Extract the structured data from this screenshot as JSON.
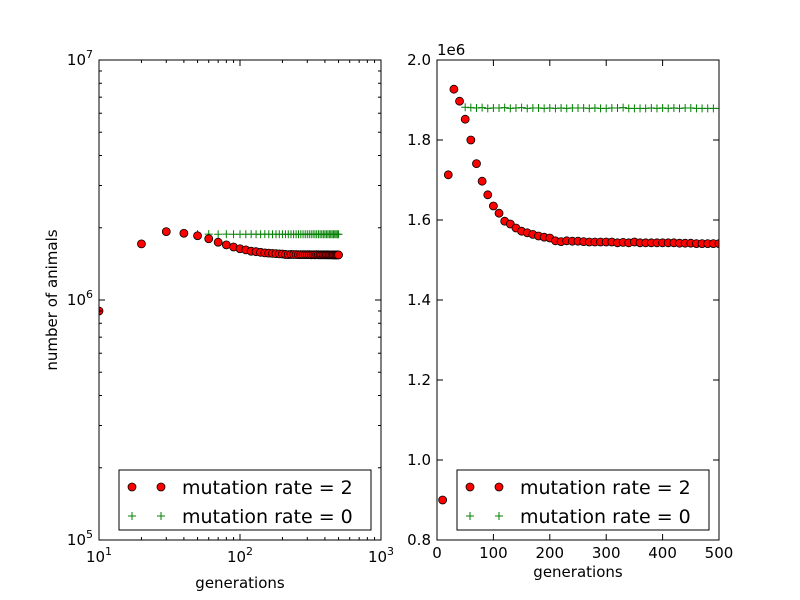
{
  "chart_data": [
    {
      "type": "scatter",
      "x_scale": "log",
      "y_scale": "log",
      "xlim": [
        10,
        1000
      ],
      "ylim": [
        100000,
        10000000
      ],
      "xlabel": "generations",
      "ylabel": "number of animals",
      "x_ticks": [
        {
          "value": 10,
          "base": "10",
          "exp": "1"
        },
        {
          "value": 100,
          "base": "10",
          "exp": "2"
        },
        {
          "value": 1000,
          "base": "10",
          "exp": "3"
        }
      ],
      "y_ticks": [
        {
          "value": 100000,
          "base": "10",
          "exp": "5"
        },
        {
          "value": 1000000,
          "base": "10",
          "exp": "6"
        },
        {
          "value": 10000000,
          "base": "10",
          "exp": "7"
        }
      ],
      "legend": {
        "position": "lower-right"
      },
      "series": [
        {
          "name": "mutation rate = 2",
          "marker": "circle",
          "color": "#ff0000",
          "edge": "#000000",
          "x": [
            10,
            20,
            30,
            40,
            50,
            60,
            70,
            80,
            90,
            100,
            110,
            120,
            130,
            140,
            150,
            160,
            170,
            180,
            190,
            200,
            210,
            220,
            230,
            240,
            250,
            260,
            270,
            280,
            290,
            300,
            310,
            320,
            330,
            340,
            350,
            360,
            370,
            380,
            390,
            400,
            410,
            420,
            430,
            440,
            450,
            460,
            470,
            480,
            490,
            500
          ],
          "y": [
            900000,
            1713000,
            1927000,
            1897000,
            1852000,
            1800000,
            1741000,
            1697000,
            1663000,
            1635000,
            1617000,
            1597000,
            1590000,
            1580000,
            1572000,
            1568000,
            1564000,
            1560000,
            1557000,
            1555000,
            1548000,
            1546000,
            1548000,
            1547000,
            1547000,
            1546000,
            1545000,
            1545000,
            1545000,
            1545000,
            1545000,
            1543000,
            1544000,
            1543000,
            1545000,
            1543000,
            1543000,
            1543000,
            1543000,
            1543000,
            1543000,
            1543000,
            1542000,
            1542000,
            1542000,
            1541000,
            1541000,
            1541000,
            1541000,
            1541000
          ]
        },
        {
          "name": "mutation rate = 0",
          "marker": "plus",
          "color": "#008000",
          "x": [
            50,
            60,
            70,
            80,
            90,
            100,
            110,
            120,
            130,
            140,
            150,
            160,
            170,
            180,
            190,
            200,
            210,
            220,
            230,
            240,
            250,
            260,
            270,
            280,
            290,
            300,
            310,
            320,
            330,
            340,
            350,
            360,
            370,
            380,
            390,
            400,
            410,
            420,
            430,
            440,
            450,
            460,
            470,
            480,
            490,
            500
          ],
          "y": [
            1882000,
            1881000,
            1880000,
            1881000,
            1879000,
            1880000,
            1880000,
            1881000,
            1879000,
            1880000,
            1881000,
            1879000,
            1880000,
            1880000,
            1879000,
            1880000,
            1879000,
            1880000,
            1879000,
            1880000,
            1880000,
            1880000,
            1879000,
            1880000,
            1879000,
            1879000,
            1880000,
            1880000,
            1881000,
            1879000,
            1879000,
            1879000,
            1879000,
            1880000,
            1879000,
            1880000,
            1879000,
            1880000,
            1879000,
            1880000,
            1880000,
            1879000,
            1879000,
            1879000,
            1879000,
            1879000
          ]
        }
      ]
    },
    {
      "type": "scatter",
      "x_scale": "linear",
      "y_scale": "linear",
      "xlim": [
        0,
        500
      ],
      "ylim": [
        800000,
        2000000
      ],
      "xlabel": "generations",
      "ylabel": "",
      "offset_label": "1e6",
      "x_ticks": [
        "0",
        "100",
        "200",
        "300",
        "400",
        "500"
      ],
      "y_ticks": [
        "0.8",
        "1.0",
        "1.2",
        "1.4",
        "1.6",
        "1.8",
        "2.0"
      ],
      "legend": {
        "position": "lower-right"
      },
      "series": [
        {
          "name": "mutation rate = 2",
          "marker": "circle",
          "color": "#ff0000",
          "edge": "#000000",
          "x": [
            10,
            20,
            30,
            40,
            50,
            60,
            70,
            80,
            90,
            100,
            110,
            120,
            130,
            140,
            150,
            160,
            170,
            180,
            190,
            200,
            210,
            220,
            230,
            240,
            250,
            260,
            270,
            280,
            290,
            300,
            310,
            320,
            330,
            340,
            350,
            360,
            370,
            380,
            390,
            400,
            410,
            420,
            430,
            440,
            450,
            460,
            470,
            480,
            490,
            500
          ],
          "y": [
            900000,
            1713000,
            1927000,
            1897000,
            1852000,
            1800000,
            1741000,
            1697000,
            1663000,
            1635000,
            1617000,
            1597000,
            1590000,
            1580000,
            1572000,
            1568000,
            1564000,
            1560000,
            1557000,
            1555000,
            1548000,
            1546000,
            1548000,
            1547000,
            1547000,
            1546000,
            1545000,
            1545000,
            1545000,
            1545000,
            1545000,
            1543000,
            1544000,
            1543000,
            1545000,
            1543000,
            1543000,
            1543000,
            1543000,
            1543000,
            1543000,
            1543000,
            1542000,
            1542000,
            1542000,
            1541000,
            1541000,
            1541000,
            1541000,
            1541000
          ]
        },
        {
          "name": "mutation rate = 0",
          "marker": "plus",
          "color": "#008000",
          "x": [
            50,
            60,
            70,
            80,
            90,
            100,
            110,
            120,
            130,
            140,
            150,
            160,
            170,
            180,
            190,
            200,
            210,
            220,
            230,
            240,
            250,
            260,
            270,
            280,
            290,
            300,
            310,
            320,
            330,
            340,
            350,
            360,
            370,
            380,
            390,
            400,
            410,
            420,
            430,
            440,
            450,
            460,
            470,
            480,
            490,
            500
          ],
          "y": [
            1882000,
            1881000,
            1880000,
            1881000,
            1879000,
            1880000,
            1880000,
            1881000,
            1879000,
            1880000,
            1881000,
            1879000,
            1880000,
            1880000,
            1879000,
            1880000,
            1879000,
            1880000,
            1879000,
            1880000,
            1880000,
            1880000,
            1879000,
            1880000,
            1879000,
            1879000,
            1880000,
            1880000,
            1881000,
            1879000,
            1879000,
            1879000,
            1879000,
            1880000,
            1879000,
            1880000,
            1879000,
            1880000,
            1879000,
            1880000,
            1880000,
            1879000,
            1879000,
            1879000,
            1879000,
            1879000
          ]
        }
      ]
    }
  ]
}
